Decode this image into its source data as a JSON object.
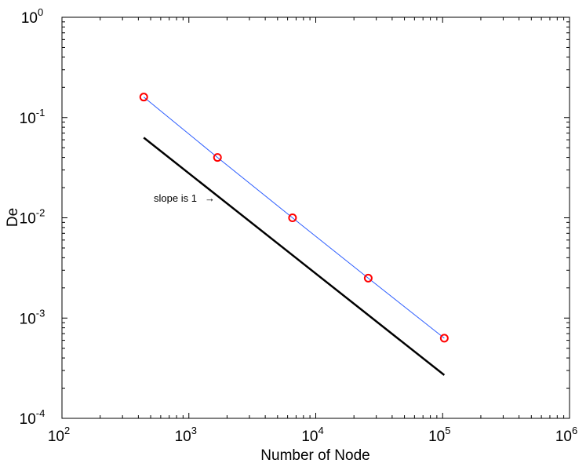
{
  "chart_data": {
    "type": "line",
    "xlabel": "Number of Node",
    "ylabel": "De",
    "xscale": "log",
    "yscale": "log",
    "xlim": [
      100,
      1000000
    ],
    "ylim": [
      0.0001,
      1
    ],
    "grid": false,
    "x_ticks": [
      {
        "base": "10",
        "exp": "2",
        "value": 100
      },
      {
        "base": "10",
        "exp": "3",
        "value": 1000
      },
      {
        "base": "10",
        "exp": "4",
        "value": 10000
      },
      {
        "base": "10",
        "exp": "5",
        "value": 100000
      },
      {
        "base": "10",
        "exp": "6",
        "value": 1000000
      }
    ],
    "y_ticks": [
      {
        "base": "10",
        "exp": "-4",
        "value": 0.0001
      },
      {
        "base": "10",
        "exp": "-3",
        "value": 0.001
      },
      {
        "base": "10",
        "exp": "-2",
        "value": 0.01
      },
      {
        "base": "10",
        "exp": "-1",
        "value": 0.1
      },
      {
        "base": "10",
        "exp": "0",
        "value": 1
      }
    ],
    "series": [
      {
        "style": "blue line with red circle markers",
        "line_color": "#2b5cff",
        "marker_color": "#ff0000",
        "x": [
          441,
          1681,
          6561,
          25921,
          103041
        ],
        "y": [
          0.16,
          0.04,
          0.01,
          0.0025,
          0.00063
        ]
      },
      {
        "style": "black reference line",
        "line_color": "#000000",
        "x": [
          441,
          103041
        ],
        "y": [
          0.063,
          0.00027
        ]
      }
    ],
    "annotations": [
      {
        "text": "slope is 1",
        "arrow": "→",
        "x": 1700,
        "y": 0.0155
      }
    ]
  }
}
